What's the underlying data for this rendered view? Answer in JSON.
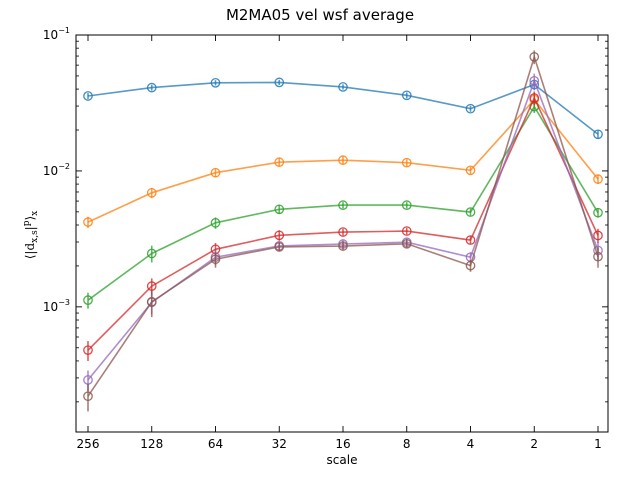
{
  "chart_data": {
    "type": "line",
    "title": "M2MA05 vel wsf average",
    "xlabel": "scale",
    "ylabel": "⟨|d_{x,s}|^p⟩_x",
    "y_scale": "log",
    "ylim": [
      0.00012,
      0.1
    ],
    "x": [
      "256",
      "128",
      "64",
      "32",
      "16",
      "8",
      "4",
      "2",
      "1"
    ],
    "y_tick_labels": [
      "10^-3",
      "10^-2",
      "10^-1"
    ],
    "y_ticks": [
      0.001,
      0.01,
      0.1
    ],
    "grid": false,
    "legend": "none",
    "series": [
      {
        "color": "#1f77b4",
        "values": [
          0.0356,
          0.041,
          0.0445,
          0.0448,
          0.0415,
          0.036,
          0.0287,
          0.0432,
          0.0186
        ],
        "errors": [
          0.0018,
          0.002,
          0.002,
          0.002,
          0.0018,
          0.0018,
          0.0015,
          0.004,
          0.0012
        ]
      },
      {
        "color": "#ff7f0e",
        "values": [
          0.0042,
          0.0069,
          0.0097,
          0.0116,
          0.012,
          0.0115,
          0.0101,
          0.0335,
          0.0087
        ],
        "errors": [
          0.0004,
          0.0006,
          0.0007,
          0.0008,
          0.0008,
          0.0007,
          0.0006,
          0.004,
          0.0007
        ]
      },
      {
        "color": "#2ca02c",
        "values": [
          0.00112,
          0.00247,
          0.00415,
          0.00522,
          0.0056,
          0.0056,
          0.00498,
          0.0297,
          0.00493
        ],
        "errors": [
          0.00015,
          0.00035,
          0.0004,
          0.0004,
          0.0003,
          0.0003,
          0.0003,
          0.003,
          0.0004
        ]
      },
      {
        "color": "#d62728",
        "values": [
          0.00048,
          0.00142,
          0.00265,
          0.00336,
          0.00355,
          0.00361,
          0.0031,
          0.0344,
          0.00335
        ],
        "errors": [
          8e-05,
          0.0002,
          0.0003,
          0.0003,
          0.0002,
          0.0002,
          0.0002,
          0.004,
          0.0004
        ]
      },
      {
        "color": "#9467bd",
        "values": [
          0.00029,
          0.00108,
          0.00232,
          0.00281,
          0.0029,
          0.00299,
          0.00232,
          0.046,
          0.0026
        ],
        "errors": [
          5e-05,
          0.0002,
          0.0003,
          0.0002,
          0.0002,
          0.0002,
          0.0002,
          0.006,
          0.0004
        ]
      },
      {
        "color": "#8c564b",
        "values": [
          0.00022,
          0.00109,
          0.00224,
          0.00276,
          0.0028,
          0.00291,
          0.00201,
          0.069,
          0.00234
        ],
        "errors": [
          5e-05,
          0.00025,
          0.0003,
          0.0002,
          0.0002,
          0.0002,
          0.0002,
          0.008,
          0.0004
        ]
      }
    ]
  }
}
